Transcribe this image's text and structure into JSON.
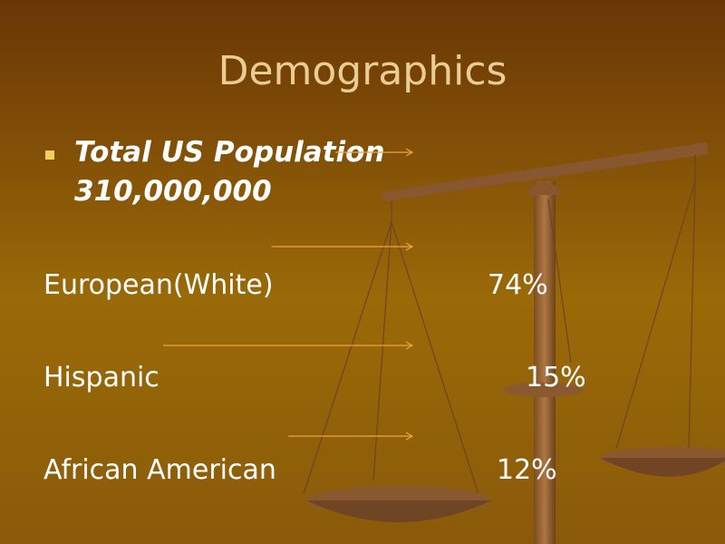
{
  "title": "Demographics",
  "bullet": {
    "label": "Total US Population",
    "value": "310,000,000"
  },
  "rows": [
    {
      "label": "European(White)",
      "value": "74%"
    },
    {
      "label": "Hispanic",
      "value": "15%"
    },
    {
      "label": "African American",
      "value": "12%"
    }
  ]
}
